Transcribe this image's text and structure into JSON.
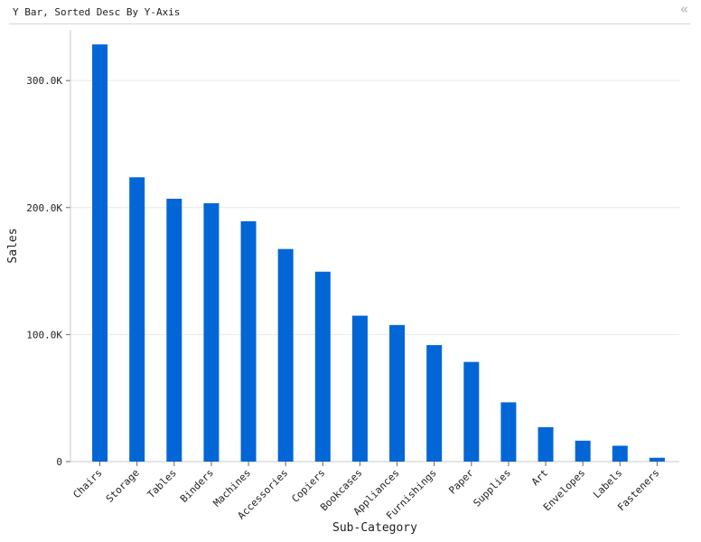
{
  "header": {
    "title": "Y Bar, Sorted Desc By Y-Axis",
    "collapse_icon": "double-chevron-left-icon"
  },
  "colors": {
    "bar": "#0366d6",
    "grid": "#e8e8e8",
    "axis": "#c8c8c8"
  },
  "chart_data": {
    "type": "bar",
    "xlabel": "Sub-Category",
    "ylabel": "Sales",
    "ylim": [
      0,
      330000
    ],
    "yticks": [
      {
        "value": 0,
        "label": "0"
      },
      {
        "value": 100000,
        "label": "100.0K"
      },
      {
        "value": 200000,
        "label": "200.0K"
      },
      {
        "value": 300000,
        "label": "300.0K"
      }
    ],
    "grid": true,
    "categories": [
      "Chairs",
      "Storage",
      "Tables",
      "Binders",
      "Machines",
      "Accessories",
      "Copiers",
      "Bookcases",
      "Appliances",
      "Furnishings",
      "Paper",
      "Supplies",
      "Art",
      "Envelopes",
      "Labels",
      "Fasteners"
    ],
    "values": [
      328449,
      223844,
      206966,
      203413,
      189239,
      167380,
      149528,
      114880,
      107532,
      91705,
      78479,
      46674,
      27119,
      16476,
      12486,
      3024
    ]
  }
}
